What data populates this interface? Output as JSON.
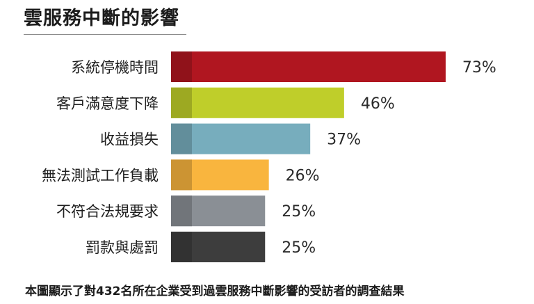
{
  "chart_data": {
    "type": "bar",
    "orientation": "horizontal",
    "title": "雲服務中斷的影響",
    "categories": [
      "系統停機時間",
      "客戶滿意度下降",
      "收益損失",
      "無法測試工作負載",
      "不符合法規要求",
      "罰款與處罰"
    ],
    "values": [
      73,
      46,
      37,
      26,
      25,
      25
    ],
    "value_labels": [
      "73%",
      "46%",
      "37%",
      "26%",
      "25%",
      "25%"
    ],
    "colors": [
      "#b01620",
      "#bfce2a",
      "#77adbd",
      "#f9b53e",
      "#8a8f95",
      "#3d3d3d"
    ],
    "xlim": [
      0,
      100
    ],
    "unit": "%",
    "grid": false,
    "legend": "none"
  },
  "footnote": "本圖顯示了對432名所在企業受到過雲服務中斷影響的受訪者的調查結果"
}
